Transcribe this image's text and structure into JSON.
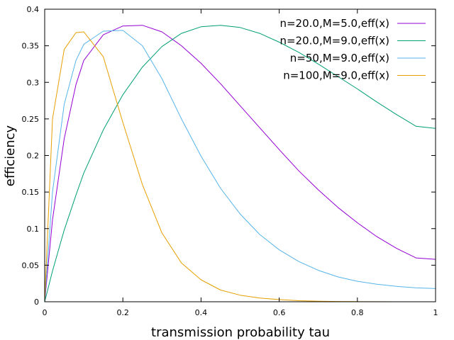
{
  "chart_data": {
    "type": "line",
    "title": "",
    "xlabel": "transmission probability tau",
    "ylabel": "efficiency",
    "xlim": [
      0,
      1
    ],
    "ylim": [
      0,
      0.4
    ],
    "x_ticks": [
      0,
      0.2,
      0.4,
      0.6,
      0.8,
      1
    ],
    "x_tick_labels": [
      "0",
      "0.2",
      "0.4",
      "0.6",
      "0.8",
      "1"
    ],
    "y_ticks": [
      0,
      0.05,
      0.1,
      0.15,
      0.2,
      0.25,
      0.3,
      0.35,
      0.4
    ],
    "y_tick_labels": [
      "0",
      "0.05",
      "0.1",
      "0.15",
      "0.2",
      "0.25",
      "0.3",
      "0.35",
      "0.4"
    ],
    "grid": false,
    "legend_position": "top-right",
    "x": [
      0,
      0.02,
      0.05,
      0.08,
      0.1,
      0.15,
      0.2,
      0.25,
      0.3,
      0.35,
      0.4,
      0.45,
      0.5,
      0.55,
      0.6,
      0.65,
      0.7,
      0.75,
      0.8,
      0.85,
      0.9,
      0.95,
      1.0
    ],
    "series": [
      {
        "name": "n=20.0,M=5.0,eff(x)",
        "color": "#9400d3",
        "values": [
          0.0,
          0.112,
          0.223,
          0.297,
          0.33,
          0.365,
          0.377,
          0.378,
          0.369,
          0.35,
          0.326,
          0.298,
          0.268,
          0.238,
          0.208,
          0.179,
          0.153,
          0.129,
          0.108,
          0.089,
          0.073,
          0.06,
          0.058
        ]
      },
      {
        "name": "n=20.0,M=9.0,eff(x)",
        "color": "#009e73",
        "values": [
          0.0,
          0.042,
          0.098,
          0.146,
          0.176,
          0.235,
          0.283,
          0.321,
          0.349,
          0.367,
          0.376,
          0.378,
          0.375,
          0.367,
          0.355,
          0.341,
          0.325,
          0.308,
          0.291,
          0.273,
          0.256,
          0.24,
          0.237
        ]
      },
      {
        "name": "n=50,M=9.0,eff(x)",
        "color": "#56b4e9",
        "values": [
          0.0,
          0.15,
          0.27,
          0.33,
          0.352,
          0.37,
          0.371,
          0.35,
          0.305,
          0.25,
          0.199,
          0.155,
          0.12,
          0.092,
          0.071,
          0.055,
          0.043,
          0.034,
          0.028,
          0.024,
          0.021,
          0.019,
          0.018
        ]
      },
      {
        "name": "n=100,M=9.0,eff(x)",
        "color": "#e69f00",
        "values": [
          0.0,
          0.25,
          0.345,
          0.368,
          0.369,
          0.335,
          0.245,
          0.16,
          0.094,
          0.053,
          0.03,
          0.016,
          0.009,
          0.005,
          0.003,
          0.0015,
          0.0008,
          0.0004,
          0.0002,
          0.0001,
          0.0,
          0.0,
          0.0
        ]
      }
    ]
  }
}
